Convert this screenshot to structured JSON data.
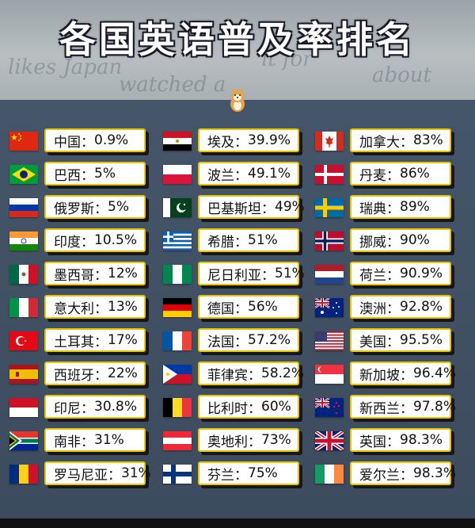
{
  "title": "各国英语普及率排名",
  "columns": [
    [
      {
        "name": "中国",
        "value": "0.9%",
        "flag": "china"
      },
      {
        "name": "巴西",
        "value": "5%",
        "flag": "brazil"
      },
      {
        "name": "俄罗斯",
        "value": "5%",
        "flag": "russia"
      },
      {
        "name": "印度",
        "value": "10.5%",
        "flag": "india"
      },
      {
        "name": "墨西哥",
        "value": "12%",
        "flag": "mexico"
      },
      {
        "name": "意大利",
        "value": "13%",
        "flag": "italy"
      },
      {
        "name": "土耳其",
        "value": "17%",
        "flag": "turkey"
      },
      {
        "name": "西班牙",
        "value": "22%",
        "flag": "spain"
      },
      {
        "name": "印尼",
        "value": "30.8%",
        "flag": "indonesia"
      },
      {
        "name": "南非",
        "value": "31%",
        "flag": "south-africa"
      },
      {
        "name": "罗马尼亚",
        "value": "31%",
        "flag": "romania"
      }
    ],
    [
      {
        "name": "埃及",
        "value": "39.9%",
        "flag": "egypt"
      },
      {
        "name": "波兰",
        "value": "49.1%",
        "flag": "poland"
      },
      {
        "name": "巴基斯坦",
        "value": "49%",
        "flag": "pakistan"
      },
      {
        "name": "希腊",
        "value": "51%",
        "flag": "greece"
      },
      {
        "name": "尼日利亚",
        "value": "51%",
        "flag": "nigeria"
      },
      {
        "name": "德国",
        "value": "56%",
        "flag": "germany"
      },
      {
        "name": "法国",
        "value": "57.2%",
        "flag": "france"
      },
      {
        "name": "菲律宾",
        "value": "58.2%",
        "flag": "philippines"
      },
      {
        "name": "比利时",
        "value": "60%",
        "flag": "belgium"
      },
      {
        "name": "奥地利",
        "value": "73%",
        "flag": "austria"
      },
      {
        "name": "芬兰",
        "value": "75%",
        "flag": "finland"
      }
    ],
    [
      {
        "name": "加拿大",
        "value": "83%",
        "flag": "canada"
      },
      {
        "name": "丹麦",
        "value": "86%",
        "flag": "denmark"
      },
      {
        "name": "瑞典",
        "value": "89%",
        "flag": "sweden"
      },
      {
        "name": "挪威",
        "value": "90%",
        "flag": "norway"
      },
      {
        "name": "荷兰",
        "value": "90.9%",
        "flag": "netherlands"
      },
      {
        "name": "澳洲",
        "value": "92.8%",
        "flag": "australia"
      },
      {
        "name": "美国",
        "value": "95.5%",
        "flag": "usa"
      },
      {
        "name": "新加坡",
        "value": "96.4%",
        "flag": "singapore"
      },
      {
        "name": "新西兰",
        "value": "97.8%",
        "flag": "new-zealand"
      },
      {
        "name": "英国",
        "value": "98.3%",
        "flag": "uk"
      },
      {
        "name": "爱尔兰",
        "value": "98.3%",
        "flag": "ireland"
      }
    ]
  ],
  "colors": {
    "box_border": "#e8c400",
    "panel": "#46566a"
  }
}
